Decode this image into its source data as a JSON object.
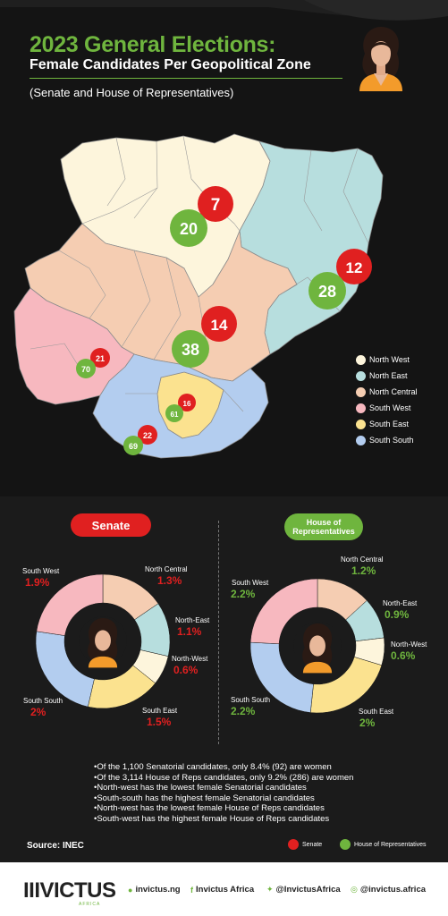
{
  "header": {
    "title": "2023 General Elections:",
    "subtitle": "Female Candidates Per Geopolitical Zone",
    "note": "(Senate and House of Representatives)"
  },
  "map": {
    "zone_colors": {
      "north_west": "#fdf5dc",
      "north_east": "#b7dede",
      "north_central": "#f5cdb2",
      "south_west": "#f7b8bf",
      "south_east": "#fbe28f",
      "south_south": "#b3cdef"
    },
    "bubbles": {
      "north_west_senate": "7",
      "north_west_house": "20",
      "north_east_senate": "12",
      "north_east_house": "28",
      "north_central_senate": "14",
      "north_central_house": "38",
      "south_west_senate": "21",
      "south_west_house": "70",
      "south_east_senate": "16",
      "south_east_house": "61",
      "south_south_senate": "22",
      "south_south_house": "69"
    },
    "legend": [
      "North West",
      "North East",
      "North Central",
      "South West",
      "South East",
      "South South"
    ]
  },
  "senate": {
    "label": "Senate",
    "zones": {
      "south_west": {
        "name": "South West",
        "value": "1.9%"
      },
      "north_central": {
        "name": "North Central",
        "value": "1.3%"
      },
      "north_east": {
        "name": "North-East",
        "value": "1.1%"
      },
      "north_west": {
        "name": "North-West",
        "value": "0.6%"
      },
      "south_east": {
        "name": "South East",
        "value": "1.5%"
      },
      "south_south": {
        "name": "South South",
        "value": "2%"
      }
    }
  },
  "house": {
    "label_line1": "House of",
    "label_line2": "Representatives",
    "zones": {
      "south_west": {
        "name": "South West",
        "value": "2.2%"
      },
      "north_central": {
        "name": "North Central",
        "value": "1.2%"
      },
      "north_east": {
        "name": "North-East",
        "value": "0.9%"
      },
      "north_west": {
        "name": "North-West",
        "value": "0.6%"
      },
      "south_east": {
        "name": "South East",
        "value": "2%"
      },
      "south_south": {
        "name": "South South",
        "value": "2.2%"
      }
    }
  },
  "facts": [
    "•Of  the 1,100 Senatorial candidates, only 8.4% (92) are women",
    "•Of the 3,114 House of Reps candidates, only 9.2% (286) are women",
    "•North-west has the lowest female Senatorial candidates",
    "•South-south has the highest female Senatorial candidates",
    "•North-west has the lowest female House of Reps candidates",
    "•South-west has the highest female House of Reps candidates"
  ],
  "source": "Source: INEC",
  "bottom_legend": {
    "senate": "Senate",
    "house": "House of Representatives"
  },
  "footer": {
    "brand": "IIIVICTUS",
    "brand_sub": "AFRICA",
    "website": "invictus.ng",
    "facebook": "Invictus Africa",
    "twitter": "@InvictusAfrica",
    "instagram": "@invictus.africa"
  },
  "colors": {
    "senate": "#e02020",
    "house": "#6fb53e"
  },
  "chart_data": [
    {
      "type": "pie",
      "title": "Senate",
      "categories": [
        "North Central",
        "North-East",
        "North-West",
        "South East",
        "South South",
        "South West"
      ],
      "values": [
        1.3,
        1.1,
        0.6,
        1.5,
        2.0,
        1.9
      ],
      "colors": [
        "#f5cdb2",
        "#b7dede",
        "#fdf5dc",
        "#fbe28f",
        "#b3cdef",
        "#f7b8bf"
      ]
    },
    {
      "type": "pie",
      "title": "House of Representatives",
      "categories": [
        "North Central",
        "North-East",
        "North-West",
        "South East",
        "South South",
        "South West"
      ],
      "values": [
        1.2,
        0.9,
        0.6,
        2.0,
        2.2,
        2.2
      ],
      "colors": [
        "#f5cdb2",
        "#b7dede",
        "#fdf5dc",
        "#fbe28f",
        "#b3cdef",
        "#f7b8bf"
      ]
    }
  ]
}
